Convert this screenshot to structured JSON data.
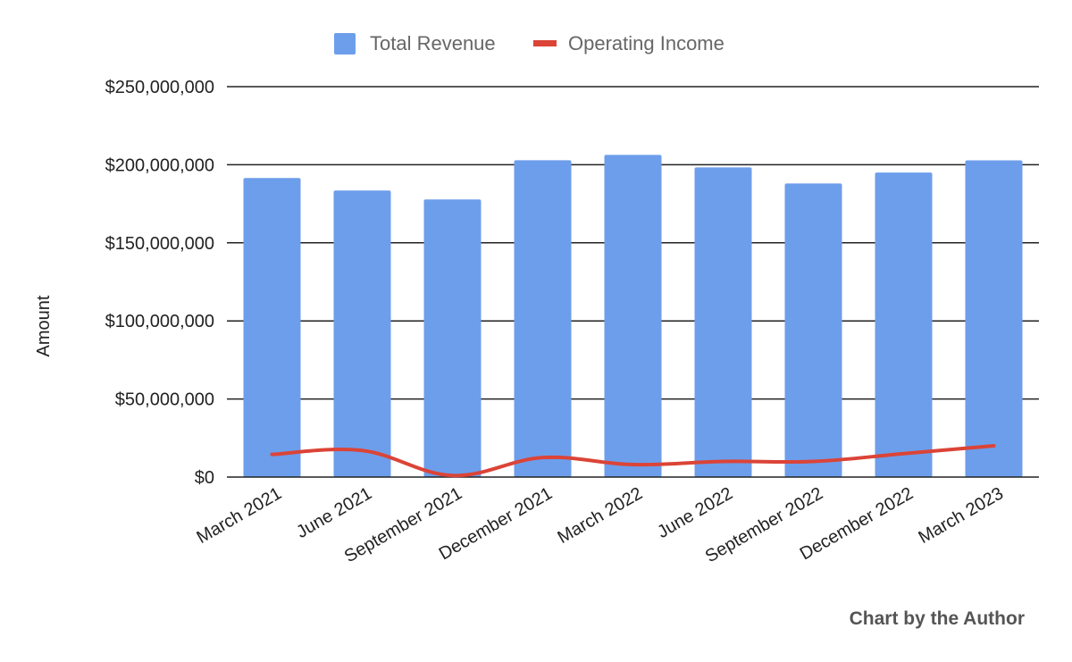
{
  "chart_data": {
    "type": "bar",
    "categories": [
      "March 2021",
      "June 2021",
      "September 2021",
      "December 2021",
      "March 2022",
      "June 2022",
      "September 2022",
      "December 2022",
      "March 2023"
    ],
    "series": [
      {
        "name": "Total Revenue",
        "type": "bar",
        "color": "#6d9eeb",
        "values": [
          191500000,
          183500000,
          177800000,
          202900000,
          206300000,
          198300000,
          188000000,
          195000000,
          202800000
        ]
      },
      {
        "name": "Operating Income",
        "type": "line",
        "color": "#db4437",
        "values": [
          14500000,
          17000000,
          1000000,
          12500000,
          8000000,
          10000000,
          10000000,
          15000000,
          20000000
        ]
      }
    ],
    "ylabel": "Amount",
    "xlabel": "",
    "ylim": [
      0,
      250000000
    ],
    "yticks": [
      "$0",
      "$50,000,000",
      "$100,000,000",
      "$150,000,000",
      "$200,000,000",
      "$250,000,000"
    ],
    "ytick_values": [
      0,
      50000000,
      100000000,
      150000000,
      200000000,
      250000000
    ],
    "legend_position": "top-center",
    "grid": true
  },
  "credit": "Chart by the Author"
}
